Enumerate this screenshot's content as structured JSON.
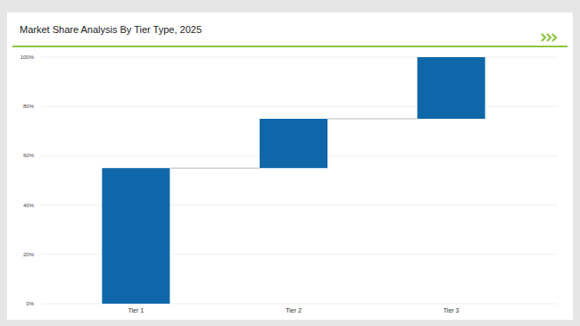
{
  "chart_data": {
    "type": "waterfall",
    "title": "Market Share Analysis By Tier Type, 2025",
    "categories": [
      "Tier 1",
      "Tier 2",
      "Tier 3"
    ],
    "values": [
      55,
      20,
      25
    ],
    "color": "#0f67aa",
    "ylim": [
      0,
      100
    ],
    "yticks": [
      {
        "value": 0,
        "label": "0%"
      },
      {
        "value": 20,
        "label": "20%"
      },
      {
        "value": 40,
        "label": "40%"
      },
      {
        "value": 60,
        "label": "60%"
      },
      {
        "value": 80,
        "label": "80%"
      },
      {
        "value": 100,
        "label": "100%"
      }
    ],
    "grid": true
  }
}
